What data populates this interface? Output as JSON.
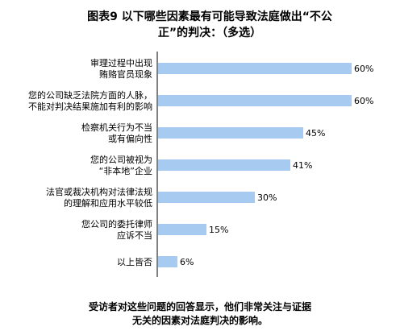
{
  "chart_data": {
    "type": "bar",
    "orientation": "horizontal",
    "title_lines": [
      "图表9  以下哪些因素最有可能导致法庭做出“不公",
      "正”的判决：（多选）"
    ],
    "categories": [
      [
        "审理过程中出现",
        "贿赂官员现象"
      ],
      [
        "您的公司缺乏法院方面的人脉，",
        "不能对判决结果施加有利的影响"
      ],
      [
        "检察机关行为不当",
        "或有偏向性"
      ],
      [
        "您的公司被视为",
        "“非本地”企业"
      ],
      [
        "法官或裁决机构对法律法规",
        "的理解和应用水平较低"
      ],
      [
        "您公司的委托律师",
        "应诉不当"
      ],
      [
        "以上皆否"
      ]
    ],
    "values": [
      60,
      60,
      45,
      41,
      30,
      15,
      6
    ],
    "value_labels": [
      "60%",
      "60%",
      "45%",
      "41%",
      "30%",
      "15%",
      "6%"
    ],
    "unit": "%",
    "xlim": [
      0,
      62
    ],
    "bar_color": "#a6caf0",
    "grid": false,
    "legend": "none"
  },
  "footnote_lines": [
    "受访者对这些问题的回答显示，他们非常关注与证据",
    "无关的因素对法庭判决的影响。"
  ]
}
